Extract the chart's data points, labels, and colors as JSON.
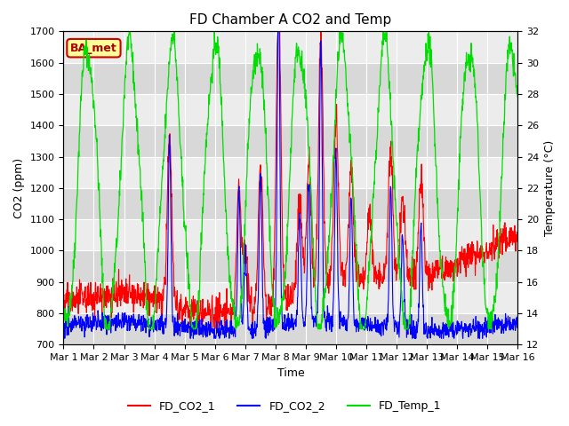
{
  "title": "FD Chamber A CO2 and Temp",
  "xlabel": "Time",
  "ylabel_left": "CO2 (ppm)",
  "ylabel_right": "Temperature (°C)",
  "ylim_left": [
    700,
    1700
  ],
  "ylim_right": [
    12,
    32
  ],
  "yticks_left": [
    700,
    800,
    900,
    1000,
    1100,
    1200,
    1300,
    1400,
    1500,
    1600,
    1700
  ],
  "yticks_right": [
    12,
    14,
    16,
    18,
    20,
    22,
    24,
    26,
    28,
    30,
    32
  ],
  "xtick_labels": [
    "Mar 1",
    "Mar 2",
    "Mar 3",
    "Mar 4",
    "Mar 5",
    "Mar 6",
    "Mar 7",
    "Mar 8",
    "Mar 9",
    "Mar 10",
    "Mar 11",
    "Mar 12",
    "Mar 13",
    "Mar 14",
    "Mar 15",
    "Mar 16"
  ],
  "color_co2_1": "#ff0000",
  "color_co2_2": "#0000ff",
  "color_temp": "#00dd00",
  "legend_label_1": "FD_CO2_1",
  "legend_label_2": "FD_CO2_2",
  "legend_label_3": "FD_Temp_1",
  "annotation_text": "BA_met",
  "annotation_bg": "#ffff99",
  "annotation_border": "#cc0000",
  "plot_bg_color": "#d8d8d8",
  "band_color": "#ececec",
  "n_days": 15,
  "seed": 42
}
